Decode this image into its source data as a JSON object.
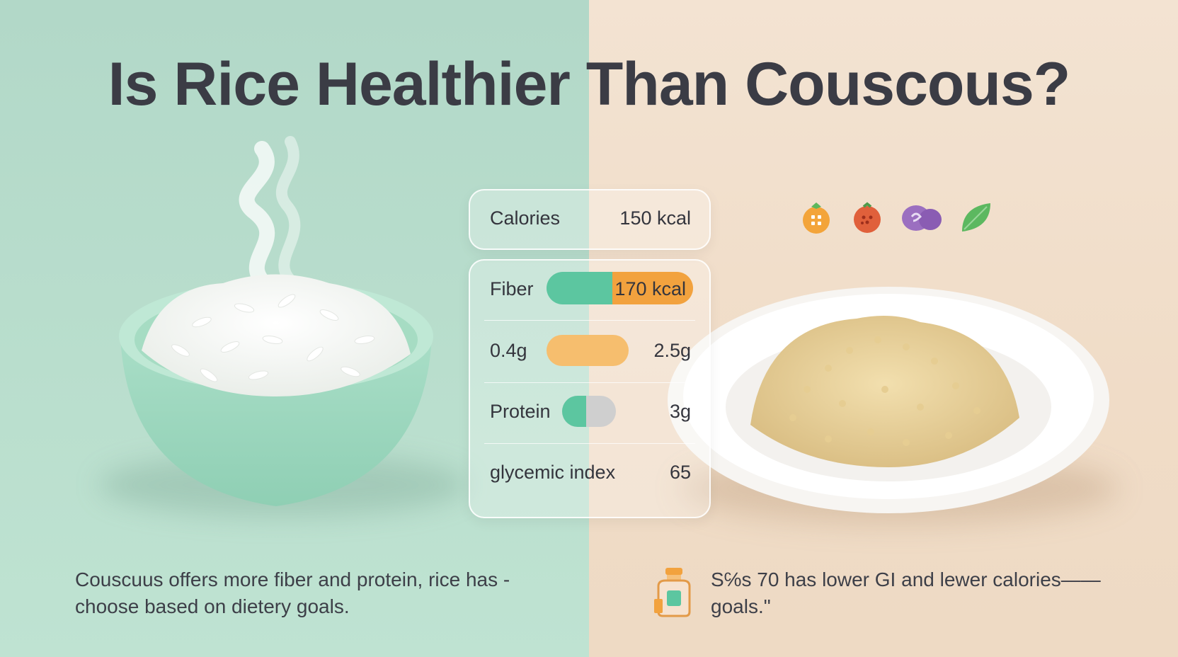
{
  "title": "Is Rice Healthier Than Couscous?",
  "nutrition": {
    "calories": {
      "label": "Calories",
      "value": "150 kcal"
    },
    "fiber": {
      "label": "Fiber",
      "value": "170 kcal",
      "left_share": 0.45
    },
    "fiber_grams": {
      "left": "0.4g",
      "right": "2.5g"
    },
    "protein": {
      "label": "Protein",
      "value": "3g",
      "fill": 0.45
    },
    "glycemic": {
      "label": "glycemic index",
      "value": "65"
    }
  },
  "captions": {
    "left": "Couscuus offers more fiber and protein, rice has -choose based on dietery goals.",
    "right": "S℅s 70 has lower GI and lewer calories—— goals.\""
  },
  "icons": [
    "orange-icon",
    "tomato-icon",
    "grape-icon",
    "leaf-icon",
    "jar-icon"
  ],
  "colors": {
    "mint": "#5cc6a0",
    "orange": "#f2a23e",
    "peach": "#f6be6e",
    "gray": "#cfcfcf",
    "left_bg": "#b6dbcb",
    "right_bg": "#f1dfcb"
  }
}
